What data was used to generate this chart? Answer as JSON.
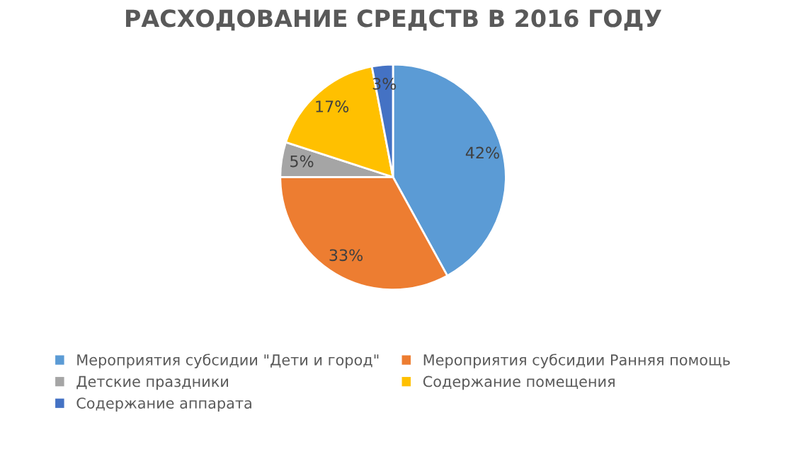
{
  "chart_data": {
    "type": "pie",
    "title": "РАСХОДОВАНИЕ СРЕДСТВ В 2016 ГОДУ",
    "categories": [
      "Мероприятия субсидии \"Дети и город\"",
      "Мероприятия субсидии Ранняя помощь",
      "Детские праздники",
      "Содержание помещения",
      "Содержание аппарата"
    ],
    "values": [
      42,
      33,
      5,
      17,
      3
    ],
    "value_labels": [
      "42%",
      "33%",
      "5%",
      "17%",
      "3%"
    ],
    "colors": [
      "#5b9bd5",
      "#ed7d31",
      "#a5a5a5",
      "#ffc000",
      "#4472c4"
    ],
    "legend": "bottom"
  }
}
